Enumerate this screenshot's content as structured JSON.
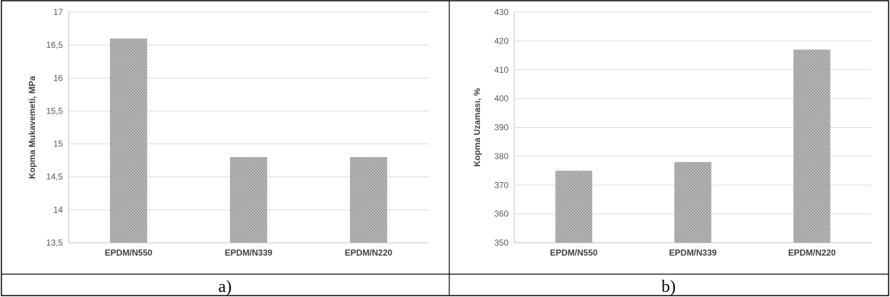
{
  "colors": {
    "bar_fill": "#c9c9c9",
    "bar_pattern": "#8f8f8f",
    "grid": "#d9d9d9",
    "axis": "#bfbfbf",
    "border": "#000000"
  },
  "chart_data": [
    {
      "type": "bar",
      "categories": [
        "EPDM/N550",
        "EPDM/N339",
        "EPDM/N220"
      ],
      "values": [
        16.6,
        14.8,
        14.8
      ],
      "title": "",
      "xlabel": "",
      "ylabel": "Kopma Mukavemeti, MPa",
      "ylim": [
        13.5,
        17
      ],
      "yticks": [
        13.5,
        14,
        14.5,
        15,
        15.5,
        16,
        16.5,
        17
      ],
      "ytick_labels": [
        "13,5",
        "14",
        "14,5",
        "15",
        "15,5",
        "16",
        "16,5",
        "17"
      ],
      "grid": true,
      "legend": "none",
      "caption": "a)"
    },
    {
      "type": "bar",
      "categories": [
        "EPDM/N550",
        "EPDM/N339",
        "EPDM/N220"
      ],
      "values": [
        375,
        378,
        417
      ],
      "title": "",
      "xlabel": "",
      "ylabel": "Kopma Uzaması, %",
      "ylim": [
        350,
        430
      ],
      "yticks": [
        350,
        360,
        370,
        380,
        390,
        400,
        410,
        420,
        430
      ],
      "ytick_labels": [
        "350",
        "360",
        "370",
        "380",
        "390",
        "400",
        "410",
        "420",
        "430"
      ],
      "grid": true,
      "legend": "none",
      "caption": "b)"
    }
  ]
}
